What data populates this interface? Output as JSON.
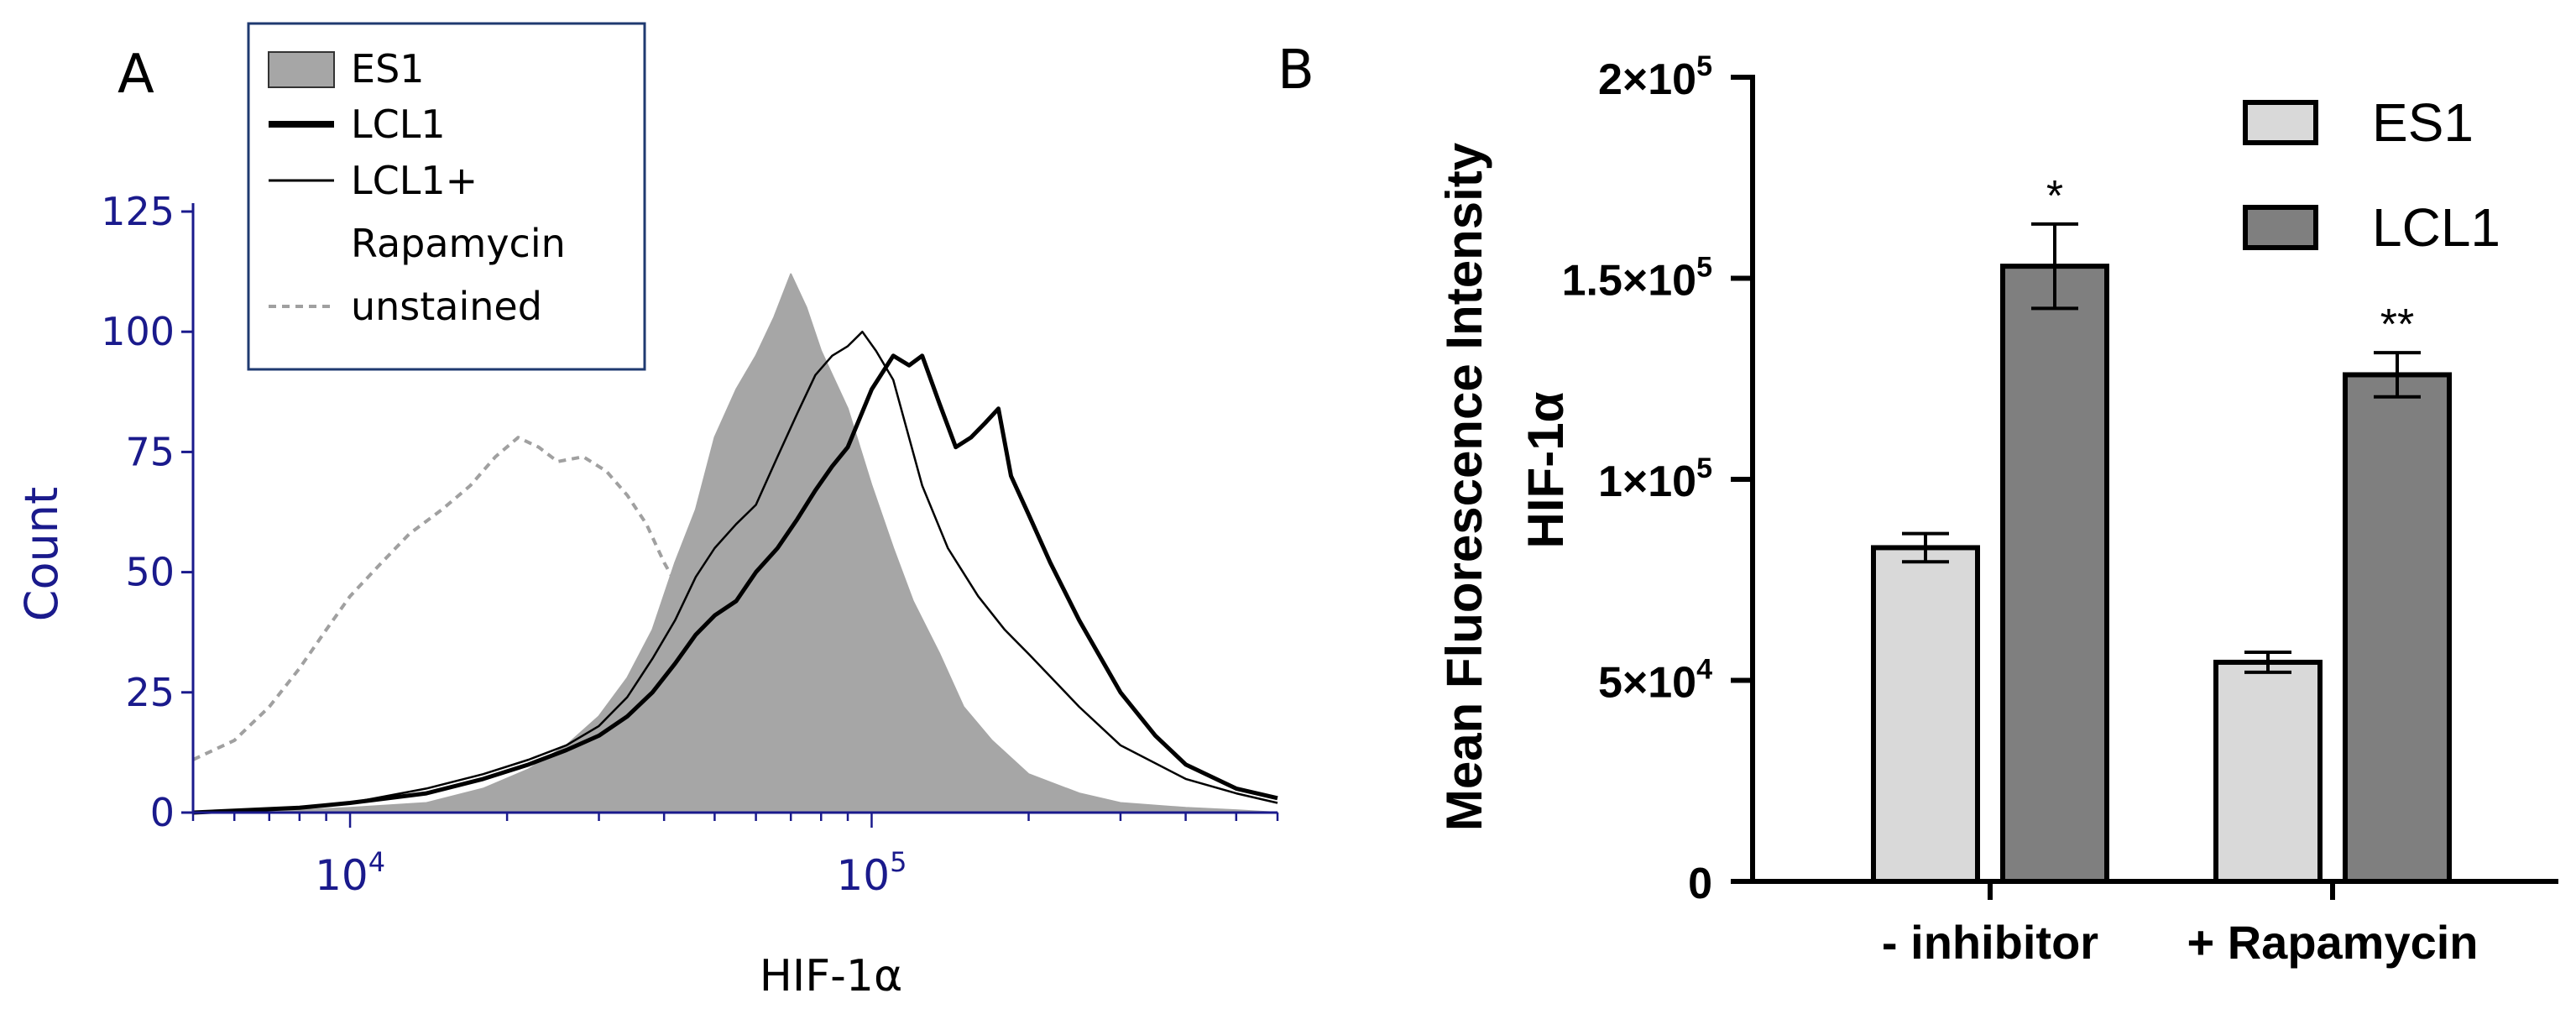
{
  "figure": {
    "panel_a_letter": "A",
    "panel_b_letter": "B"
  },
  "chart_data": [
    {
      "type": "line",
      "title": "",
      "xlabel": "HIF-1α",
      "ylabel": "Count",
      "x_scale": "log",
      "xlim": [
        5000,
        600000
      ],
      "ylim": [
        0,
        125
      ],
      "yticks": [
        0,
        25,
        50,
        75,
        100,
        125
      ],
      "ytick_labels": [
        "0",
        "25",
        "50",
        "75",
        "100",
        "125"
      ],
      "xticks": [
        {
          "value": 10000,
          "base": "10",
          "exp": "4"
        },
        {
          "value": 100000,
          "base": "10",
          "exp": "5"
        }
      ],
      "legend": {
        "position": "top-left",
        "entries": [
          {
            "series": "ES1",
            "lines": [
              "ES1"
            ],
            "style": "filled-gray"
          },
          {
            "series": "LCL1",
            "lines": [
              "LCL1"
            ],
            "style": "thick-black"
          },
          {
            "series": "LCL1+ Rapamycin",
            "lines": [
              "LCL1+",
              "Rapamycin"
            ],
            "style": "thin-black"
          },
          {
            "series": "unstained",
            "lines": [
              "unstained"
            ],
            "style": "dashed-gray"
          }
        ]
      },
      "series": [
        {
          "name": "unstained",
          "x": [
            5000,
            6000,
            7000,
            8000,
            9000,
            10000,
            11500,
            13000,
            15000,
            17000,
            19000,
            21000,
            23000,
            25000,
            28000,
            31000,
            34000,
            37000,
            40000,
            45000,
            50000,
            55000,
            60000
          ],
          "y": [
            11,
            15,
            22,
            30,
            38,
            45,
            52,
            58,
            63,
            68,
            74,
            78,
            76,
            73,
            74,
            71,
            66,
            60,
            52,
            42,
            34,
            30,
            28
          ]
        },
        {
          "name": "ES1",
          "x": [
            5000,
            8000,
            10000,
            14000,
            18000,
            22000,
            26000,
            30000,
            34000,
            38000,
            42000,
            46000,
            50000,
            55000,
            60000,
            65000,
            70000,
            75000,
            80000,
            90000,
            100000,
            110000,
            120000,
            135000,
            150000,
            170000,
            200000,
            250000,
            300000,
            400000,
            500000,
            600000
          ],
          "y": [
            0,
            0.5,
            1,
            2,
            5,
            9,
            14,
            20,
            28,
            38,
            52,
            63,
            78,
            88,
            95,
            103,
            112,
            105,
            96,
            84,
            68,
            55,
            44,
            33,
            22,
            15,
            8,
            4,
            2,
            1,
            0.5,
            0
          ]
        },
        {
          "name": "LCL1+ Rapamycin",
          "x": [
            5000,
            8000,
            10000,
            14000,
            18000,
            22000,
            26000,
            30000,
            34000,
            38000,
            42000,
            46000,
            50000,
            55000,
            60000,
            66000,
            72000,
            78000,
            84000,
            90000,
            96000,
            102000,
            110000,
            125000,
            140000,
            160000,
            180000,
            200000,
            250000,
            300000,
            400000,
            500000,
            600000
          ],
          "y": [
            0,
            1,
            2,
            5,
            8,
            11,
            14,
            18,
            24,
            32,
            40,
            49,
            55,
            60,
            64,
            74,
            83,
            91,
            95,
            97,
            100,
            96,
            90,
            68,
            55,
            45,
            38,
            33,
            22,
            14,
            7,
            4,
            2
          ]
        },
        {
          "name": "LCL1",
          "x": [
            5000,
            8000,
            10000,
            14000,
            18000,
            22000,
            26000,
            30000,
            34000,
            38000,
            42000,
            46000,
            50000,
            55000,
            60000,
            66000,
            72000,
            78000,
            84000,
            90000,
            100000,
            110000,
            118000,
            125000,
            135000,
            145000,
            155000,
            165000,
            175000,
            185000,
            200000,
            220000,
            250000,
            300000,
            350000,
            400000,
            500000,
            600000
          ],
          "y": [
            0,
            1,
            2,
            4,
            7,
            10,
            13,
            16,
            20,
            25,
            31,
            37,
            41,
            44,
            50,
            55,
            61,
            67,
            72,
            76,
            88,
            95,
            93,
            95,
            85,
            76,
            78,
            81,
            84,
            70,
            62,
            52,
            40,
            25,
            16,
            10,
            5,
            3
          ]
        }
      ]
    },
    {
      "type": "bar",
      "title": "",
      "xlabel": "",
      "ylabel": "Mean Fluorescence Intensity HIF-1α",
      "ylabel_lines": [
        "Mean Fluorescence Intensity",
        "HIF-1α"
      ],
      "ylim": [
        0,
        200000
      ],
      "yticks": [
        {
          "value": 0,
          "label": "0",
          "exp": ""
        },
        {
          "value": 50000,
          "label": "5×10",
          "exp": "4"
        },
        {
          "value": 100000,
          "label": "1×10",
          "exp": "5"
        },
        {
          "value": 150000,
          "label": "1.5×10",
          "exp": "5"
        },
        {
          "value": 200000,
          "label": "2×10",
          "exp": "5"
        }
      ],
      "categories": [
        "- inhibitor",
        "+ Rapamycin"
      ],
      "legend": {
        "position": "top-right",
        "entries": [
          "ES1",
          "LCL1"
        ]
      },
      "series": [
        {
          "name": "ES1",
          "color": "#d9d9d9",
          "values": [
            83000,
            54500
          ],
          "errors": [
            3500,
            2500
          ],
          "annotations": [
            "",
            ""
          ]
        },
        {
          "name": "LCL1",
          "color": "#7f7f7f",
          "values": [
            153000,
            126000
          ],
          "errors": [
            10500,
            5500
          ],
          "annotations": [
            "*",
            "**"
          ]
        }
      ]
    }
  ]
}
